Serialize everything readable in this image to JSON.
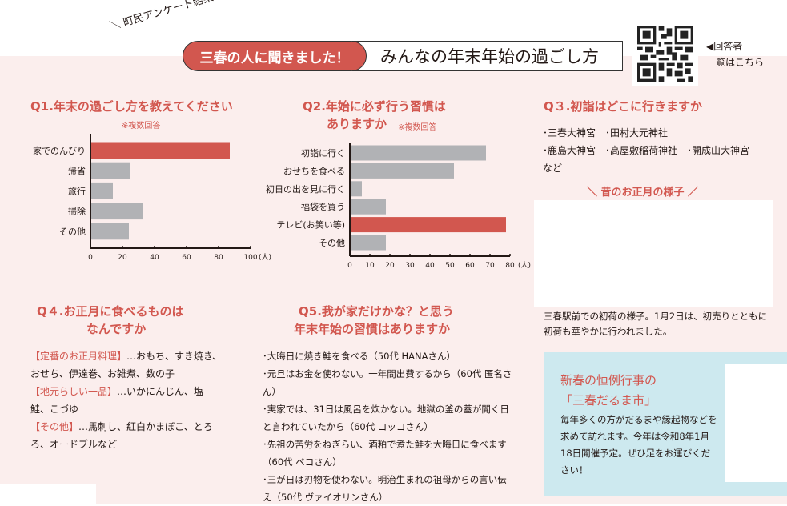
{
  "header": {
    "survey_label": "＼ 町民アンケート結果 ／",
    "tag": "三春の人に聞きました！",
    "title": "みんなの年末年始の過ごし方",
    "qr_label_1": "◀回答者",
    "qr_label_2": "一覧はこちら"
  },
  "q1": {
    "title": "Q1.年末の過ごし方を教えてください",
    "note": "※複数回答"
  },
  "q2": {
    "title_1": "Q2.年始に必ず行う習慣は",
    "title_2": "ありますか",
    "note": "※複数回答"
  },
  "q3": {
    "title": "Q３.初詣はどこに行きますか",
    "lines": [
      "･三春大神宮　･田村大元神社",
      "･鹿島大神宮　･高屋敷稲荷神社　･開成山大神宮",
      "など"
    ]
  },
  "photo": {
    "heading": "＼ 昔のお正月の様子 ／",
    "caption": "三春駅前での初荷の様子。1月2日は、初売りとともに初荷も華やかに行われました。"
  },
  "q4": {
    "title_1": "Q４.お正月に食べるものは",
    "title_2": "なんですか",
    "items": [
      {
        "label": "【定番のお正月料理】",
        "text": "…おもち、すき焼き、おせち、伊達巻、お雑煮、数の子"
      },
      {
        "label": "【地元らしい一品】",
        "text": "…いかにんじん、塩鮭、こづゆ"
      },
      {
        "label": "【その他】",
        "text": "…馬刺し、紅白かまぼこ、とろろ、オードブルなど"
      }
    ]
  },
  "q5": {
    "title_1": "Q5.我が家だけかな？と思う",
    "title_2": "年末年始の習慣はありますか",
    "items": [
      "･大晦日に焼き鮭を食べる（50代 HANAさん）",
      "･元旦はお金を使わない。一年間出費するから（60代 匿名さん）",
      "･実家では、31日は風呂を炊かない。地獄の釜の蓋が開く日と言われていたから（60代 コッコさん）",
      "･先祖の苦労をねぎらい、酒粕で煮た鮭を大晦日に食べます（60代 ペコさん）",
      "･三が日は刃物を使わない。明治生まれの祖母からの言い伝え（50代 ヴァイオリンさん）"
    ]
  },
  "event": {
    "title_1": "新春の恒例行事の",
    "title_2": "「三春だるま市」",
    "text": "毎年多くの方がだるまや縁起物などを求めて訪れます。今年は令和8年1月18日開催予定。ぜひ足をお運びください！"
  },
  "colors": {
    "accent": "#d2574f",
    "bar": "#b1b2b5",
    "pink_bg": "#fbeeed",
    "blue_bg": "#cde9ef"
  },
  "chart_data": [
    {
      "type": "bar",
      "orientation": "horizontal",
      "title": "Q1.年末の過ごし方を教えてください",
      "categories": [
        "家でのんびり",
        "帰省",
        "旅行",
        "掃除",
        "その他"
      ],
      "values": [
        87,
        25,
        14,
        33,
        24
      ],
      "highlight": 0,
      "xlim": [
        0,
        100
      ],
      "ticks": [
        0,
        20,
        40,
        60,
        80,
        100
      ],
      "unit": "(人)"
    },
    {
      "type": "bar",
      "orientation": "horizontal",
      "title": "Q2.年始に必ず行う習慣はありますか",
      "categories": [
        "初詣に行く",
        "おせちを食べる",
        "初日の出を見に行く",
        "福袋を買う",
        "テレビ(お笑い等)",
        "その他"
      ],
      "values": [
        68,
        52,
        6,
        18,
        78,
        18
      ],
      "highlight": 4,
      "xlim": [
        0,
        80
      ],
      "ticks": [
        0,
        10,
        20,
        30,
        40,
        50,
        60,
        70,
        80
      ],
      "unit": "(人)"
    }
  ]
}
